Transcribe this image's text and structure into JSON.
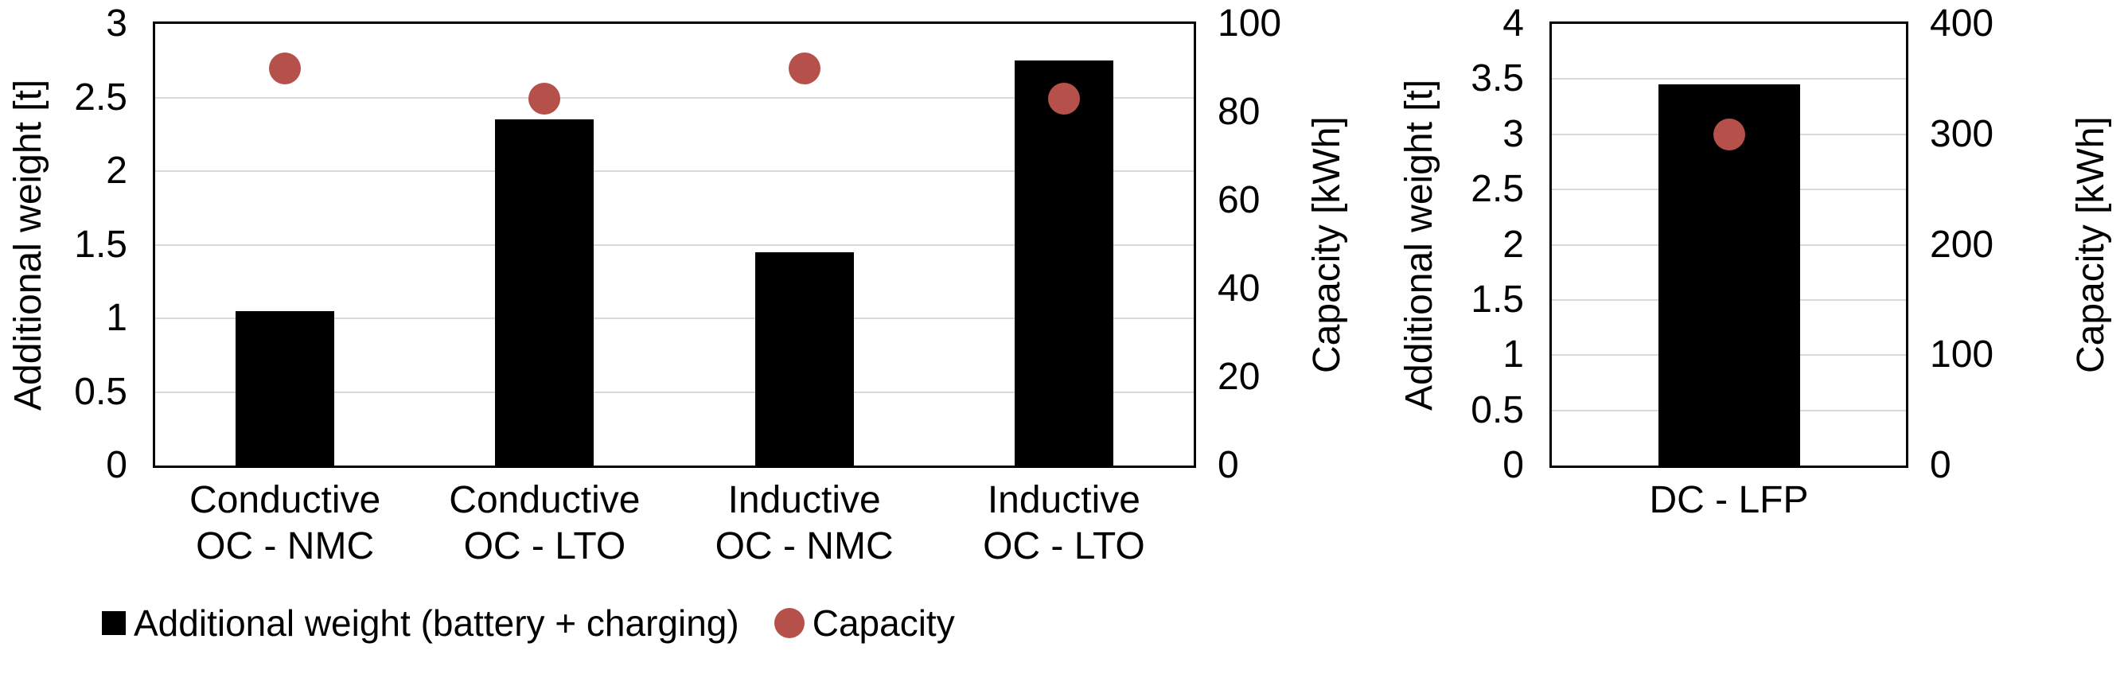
{
  "chart_data": [
    {
      "type": "bar",
      "title": "",
      "categories": [
        "Conductive\nOC - NMC",
        "Conductive\nOC - LTO",
        "Inductive\nOC - NMC",
        "Inductive\nOC - LTO"
      ],
      "series": [
        {
          "name": "Additional weight (battery + charging)",
          "type": "bar",
          "axis": "left",
          "color": "#000000",
          "values": [
            1.05,
            2.35,
            1.45,
            2.75
          ]
        },
        {
          "name": "Capacity",
          "type": "scatter",
          "axis": "right",
          "color": "#b5504a",
          "values": [
            90,
            83,
            90,
            83
          ]
        }
      ],
      "left_axis": {
        "label": "Additional weight [t]",
        "min": 0,
        "max": 3,
        "step": 0.5
      },
      "right_axis": {
        "label": "Capacity [kWh]",
        "min": 0,
        "max": 100,
        "step": 20
      },
      "grid": true,
      "legend_position": "bottom"
    },
    {
      "type": "bar",
      "title": "",
      "categories": [
        "DC - LFP"
      ],
      "series": [
        {
          "name": "Additional weight (battery + charging)",
          "type": "bar",
          "axis": "left",
          "color": "#000000",
          "values": [
            3.45
          ]
        },
        {
          "name": "Capacity",
          "type": "scatter",
          "axis": "right",
          "color": "#b5504a",
          "values": [
            300
          ]
        }
      ],
      "left_axis": {
        "label": "Additional weight [t]",
        "min": 0,
        "max": 4,
        "step": 0.5
      },
      "right_axis": {
        "label": "Capacity [kWh]",
        "min": 0,
        "max": 400,
        "step": 100
      },
      "grid": true
    }
  ],
  "legend": {
    "items": [
      {
        "label": "Additional weight (battery + charging)",
        "marker": "square",
        "color": "#000000"
      },
      {
        "label": "Capacity",
        "marker": "circle",
        "color": "#b5504a"
      }
    ]
  },
  "colors": {
    "bar": "#000000",
    "dot": "#b5504a",
    "gridline": "#d9d9d9",
    "axis": "#000000",
    "background": "#ffffff"
  }
}
